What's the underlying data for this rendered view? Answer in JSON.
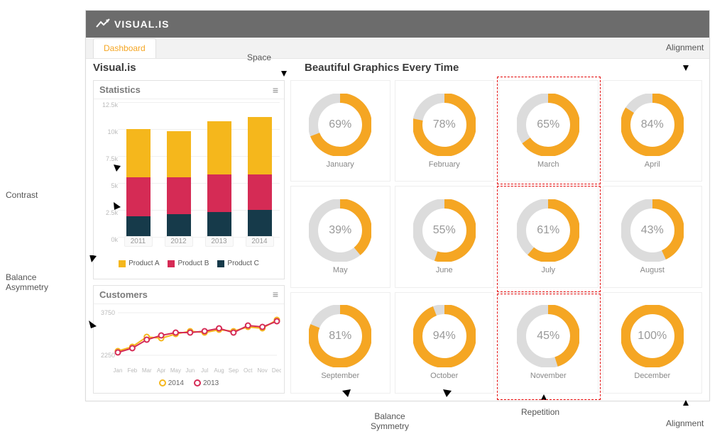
{
  "brand": "VISUAL.IS",
  "tab_label": "Dashboard",
  "page_title_left": "Visual.is",
  "page_title_right": "Beautiful Graphics Every Time",
  "colors": {
    "header_bg": "#6c6c6c",
    "accent": "#f5a623",
    "product_a": "#f5b71c",
    "product_b": "#d52b55",
    "product_c": "#163a4a",
    "donut_fg": "#f5a623",
    "donut_bg": "#dcdcdc",
    "grid": "#f0f0f0",
    "text_muted": "#999999",
    "annotation": "#e30000"
  },
  "statistics": {
    "title": "Statistics",
    "type": "stacked-bar",
    "y_max": 12500,
    "y_ticks": [
      {
        "v": 0,
        "label": "0k"
      },
      {
        "v": 2500,
        "label": "2.5k"
      },
      {
        "v": 5000,
        "label": "5k"
      },
      {
        "v": 7500,
        "label": "7.5k"
      },
      {
        "v": 10000,
        "label": "10k"
      },
      {
        "v": 12500,
        "label": "12.5k"
      }
    ],
    "categories": [
      "2011",
      "2012",
      "2013",
      "2014"
    ],
    "series": [
      {
        "name": "Product C",
        "color": "#163a4a",
        "values": [
          1900,
          2100,
          2300,
          2500
        ]
      },
      {
        "name": "Product B",
        "color": "#d52b55",
        "values": [
          3600,
          3400,
          3500,
          3300
        ]
      },
      {
        "name": "Product A",
        "color": "#f5b71c",
        "values": [
          4500,
          4300,
          4900,
          5300
        ]
      }
    ],
    "legend": [
      {
        "label": "Product A",
        "color": "#f5b71c"
      },
      {
        "label": "Product B",
        "color": "#d52b55"
      },
      {
        "label": "Product C",
        "color": "#163a4a"
      }
    ]
  },
  "customers": {
    "title": "Customers",
    "type": "line",
    "y_ticks": [
      2250,
      3750
    ],
    "x_labels": [
      "Jan",
      "Feb",
      "Mar",
      "Apr",
      "May",
      "Jun",
      "Jul",
      "Aug",
      "Sep",
      "Oct",
      "Nov",
      "Dec"
    ],
    "series": [
      {
        "name": "2014",
        "color": "#f5b71c",
        "values": [
          2400,
          2550,
          2900,
          2850,
          3000,
          3100,
          3050,
          3150,
          3100,
          3250,
          3200,
          3500
        ]
      },
      {
        "name": "2013",
        "color": "#d52b55",
        "values": [
          2350,
          2500,
          2800,
          2950,
          3050,
          3050,
          3100,
          3200,
          3050,
          3300,
          3250,
          3450
        ]
      }
    ],
    "legend": [
      {
        "label": "2014",
        "color": "#f5b71c"
      },
      {
        "label": "2013",
        "color": "#d52b55"
      }
    ]
  },
  "donuts": {
    "type": "donut-grid",
    "ring_thickness": 14,
    "fg_color": "#f5a623",
    "bg_color": "#dcdcdc",
    "items": [
      {
        "label": "January",
        "pct": 69
      },
      {
        "label": "February",
        "pct": 78
      },
      {
        "label": "March",
        "pct": 65
      },
      {
        "label": "April",
        "pct": 84
      },
      {
        "label": "May",
        "pct": 39
      },
      {
        "label": "June",
        "pct": 55
      },
      {
        "label": "July",
        "pct": 61
      },
      {
        "label": "August",
        "pct": 43
      },
      {
        "label": "September",
        "pct": 81
      },
      {
        "label": "October",
        "pct": 94
      },
      {
        "label": "November",
        "pct": 45
      },
      {
        "label": "December",
        "pct": 100
      }
    ]
  },
  "annotations": {
    "space": "Space",
    "alignment": "Alignment",
    "contrast": "Contrast",
    "balance_asymmetry_l1": "Balance",
    "balance_asymmetry_l2": "Asymmetry",
    "balance_symmetry_l1": "Balance",
    "balance_symmetry_l2": "Symmetry",
    "repetition": "Repetition"
  }
}
